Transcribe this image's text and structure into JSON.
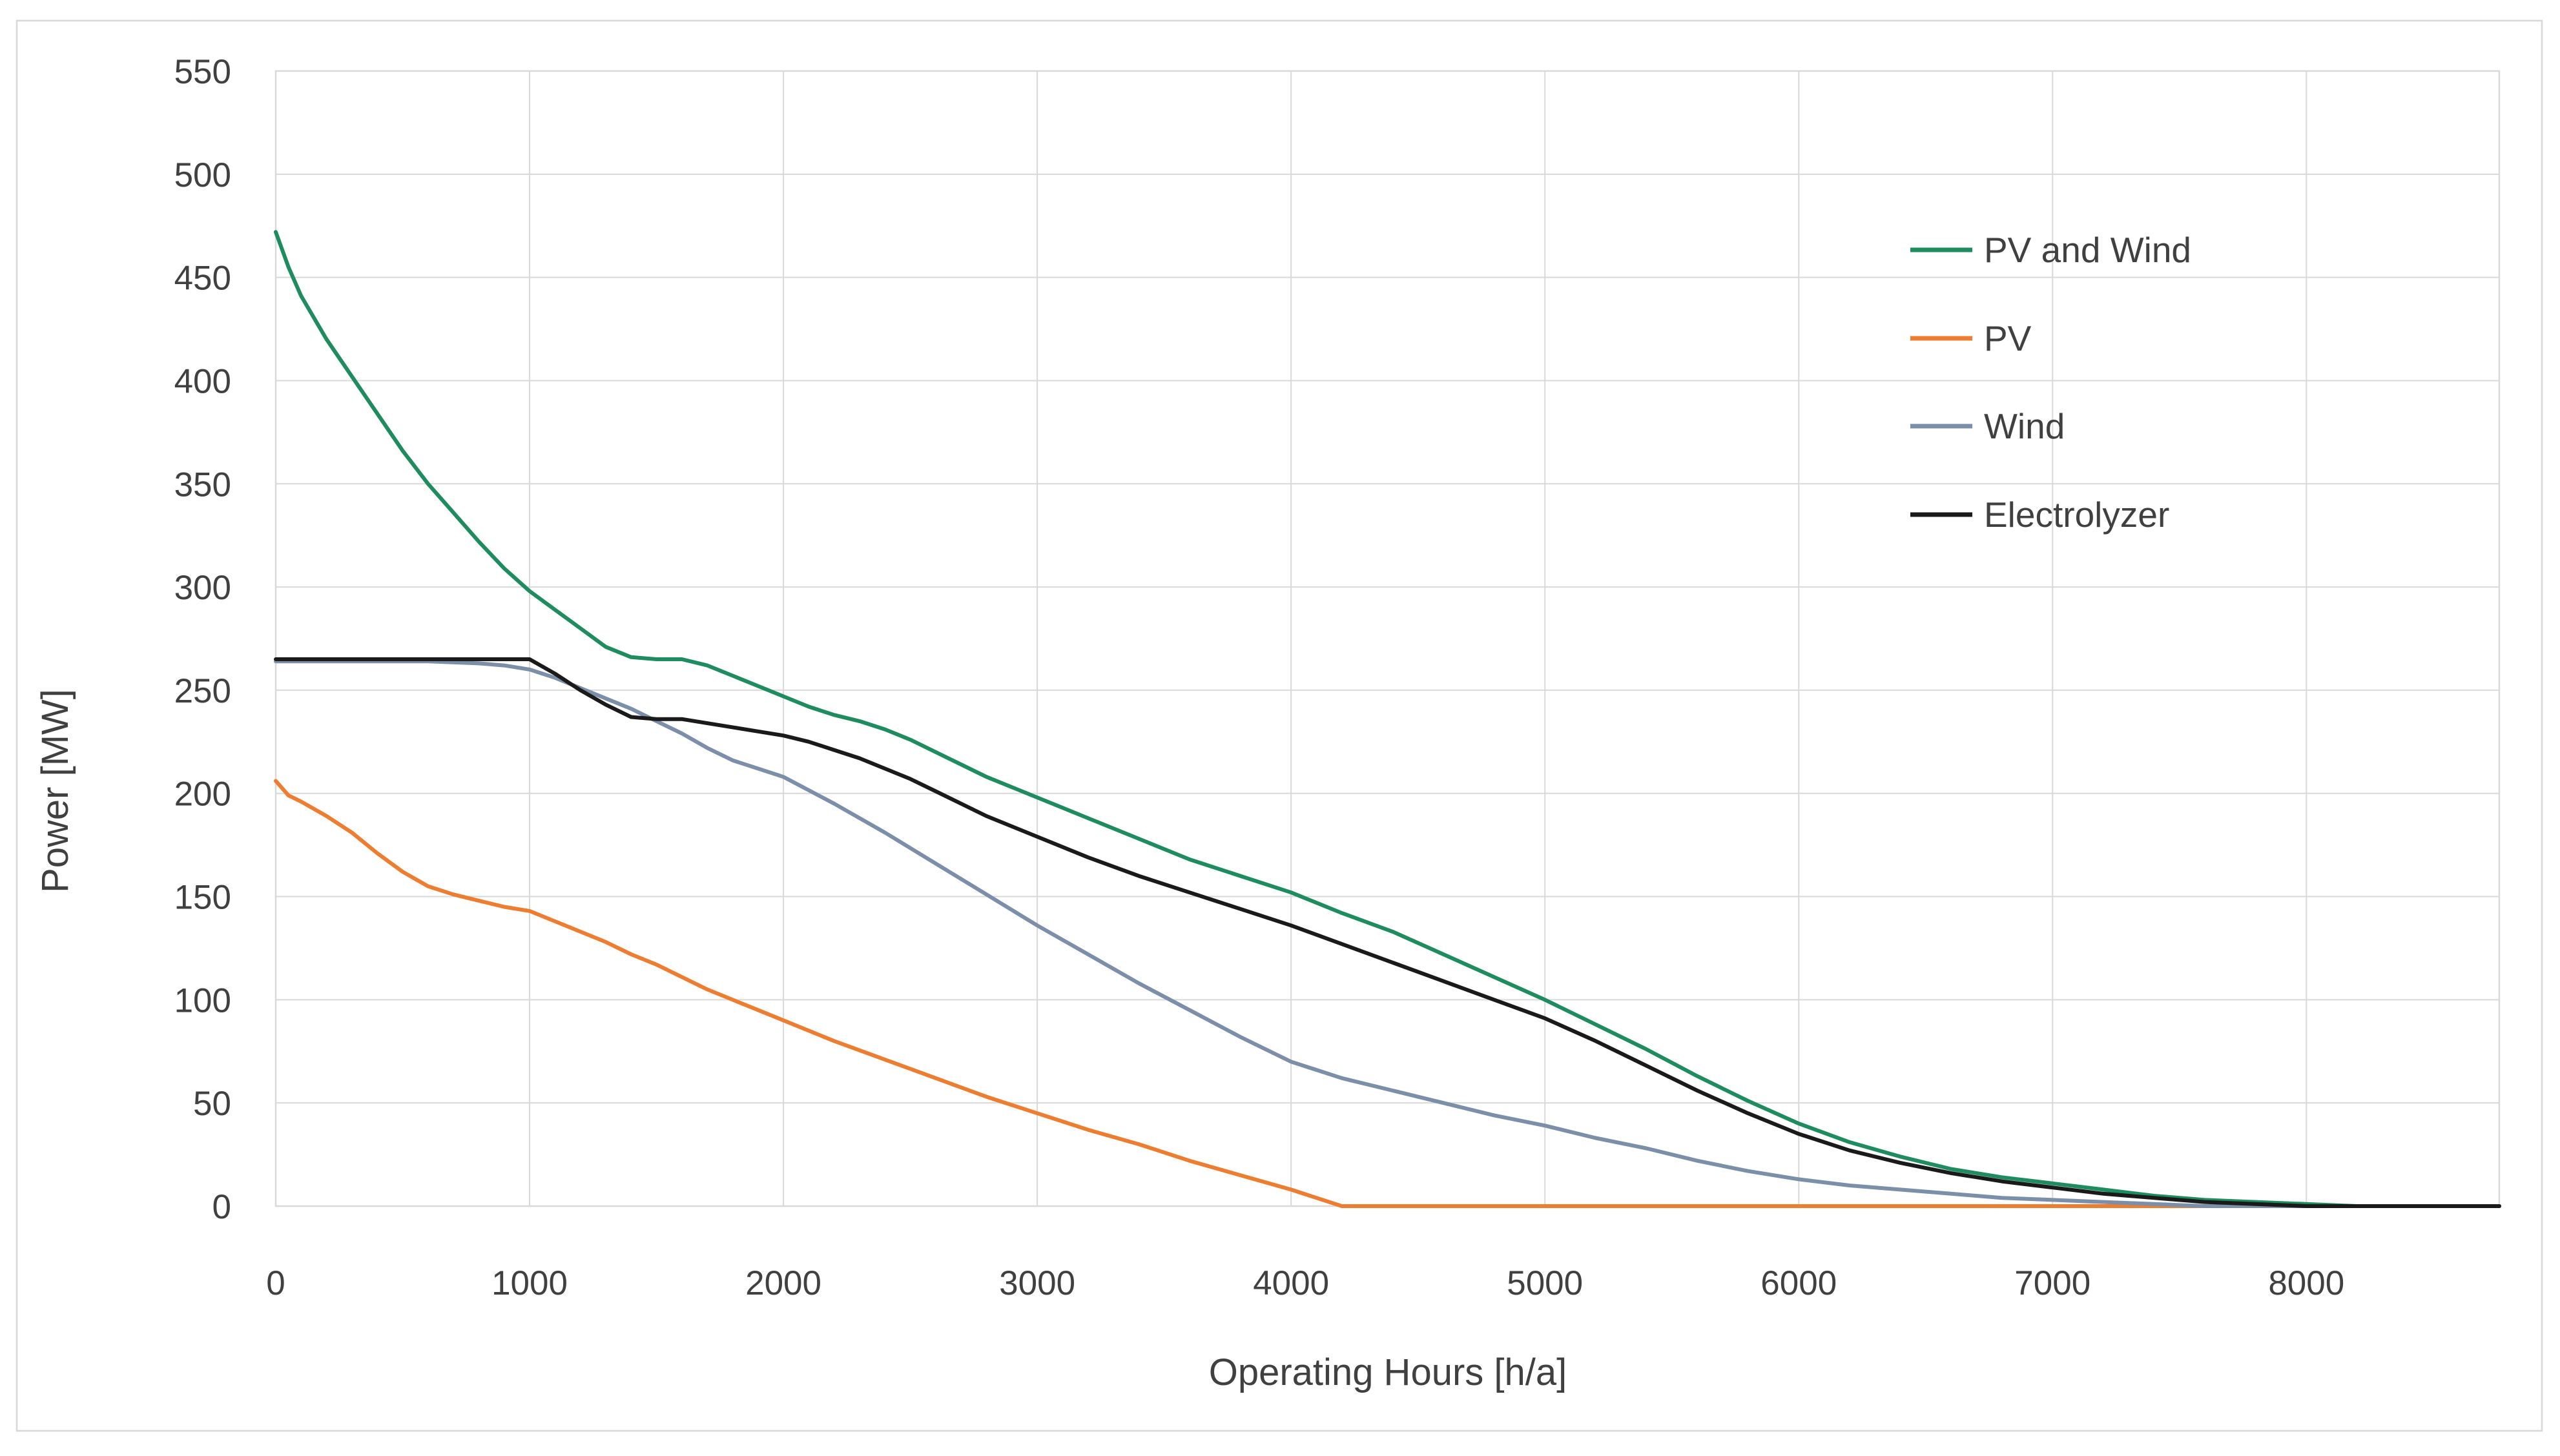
{
  "chart_data": {
    "type": "line",
    "title": "",
    "xlabel": "Operating Hours [h/a]",
    "ylabel": "Power [MW]",
    "xlim": [
      0,
      8760
    ],
    "ylim": [
      0,
      550
    ],
    "x_ticks": [
      0,
      1000,
      2000,
      3000,
      4000,
      5000,
      6000,
      7000,
      8000
    ],
    "y_ticks": [
      0,
      50,
      100,
      150,
      200,
      250,
      300,
      350,
      400,
      450,
      500,
      550
    ],
    "grid": true,
    "legend_position": "upper right",
    "series": [
      {
        "name": "PV and Wind",
        "color": "#1f8c5f",
        "points": [
          [
            0,
            472
          ],
          [
            50,
            455
          ],
          [
            100,
            441
          ],
          [
            200,
            420
          ],
          [
            300,
            402
          ],
          [
            400,
            384
          ],
          [
            500,
            366
          ],
          [
            600,
            350
          ],
          [
            700,
            336
          ],
          [
            800,
            322
          ],
          [
            900,
            309
          ],
          [
            1000,
            298
          ],
          [
            1100,
            289
          ],
          [
            1200,
            280
          ],
          [
            1300,
            271
          ],
          [
            1400,
            266
          ],
          [
            1500,
            265
          ],
          [
            1600,
            265
          ],
          [
            1700,
            262
          ],
          [
            1800,
            257
          ],
          [
            1900,
            252
          ],
          [
            2000,
            247
          ],
          [
            2100,
            242
          ],
          [
            2200,
            238
          ],
          [
            2300,
            235
          ],
          [
            2400,
            231
          ],
          [
            2500,
            226
          ],
          [
            2600,
            220
          ],
          [
            2700,
            214
          ],
          [
            2800,
            208
          ],
          [
            2900,
            203
          ],
          [
            3000,
            198
          ],
          [
            3200,
            188
          ],
          [
            3400,
            178
          ],
          [
            3600,
            168
          ],
          [
            3800,
            160
          ],
          [
            4000,
            152
          ],
          [
            4200,
            142
          ],
          [
            4400,
            133
          ],
          [
            4600,
            122
          ],
          [
            4800,
            111
          ],
          [
            5000,
            100
          ],
          [
            5200,
            88
          ],
          [
            5400,
            76
          ],
          [
            5600,
            63
          ],
          [
            5800,
            51
          ],
          [
            6000,
            40
          ],
          [
            6200,
            31
          ],
          [
            6400,
            24
          ],
          [
            6600,
            18
          ],
          [
            6800,
            14
          ],
          [
            7000,
            11
          ],
          [
            7200,
            8
          ],
          [
            7400,
            5
          ],
          [
            7600,
            3
          ],
          [
            7800,
            2
          ],
          [
            8000,
            1
          ],
          [
            8200,
            0
          ],
          [
            8760,
            0
          ]
        ]
      },
      {
        "name": "PV",
        "color": "#ed7d31",
        "points": [
          [
            0,
            206
          ],
          [
            50,
            199
          ],
          [
            100,
            196
          ],
          [
            200,
            189
          ],
          [
            300,
            181
          ],
          [
            400,
            171
          ],
          [
            500,
            162
          ],
          [
            600,
            155
          ],
          [
            700,
            151
          ],
          [
            800,
            148
          ],
          [
            900,
            145
          ],
          [
            1000,
            143
          ],
          [
            1100,
            138
          ],
          [
            1200,
            133
          ],
          [
            1300,
            128
          ],
          [
            1400,
            122
          ],
          [
            1500,
            117
          ],
          [
            1600,
            111
          ],
          [
            1700,
            105
          ],
          [
            1800,
            100
          ],
          [
            1900,
            95
          ],
          [
            2000,
            90
          ],
          [
            2200,
            80
          ],
          [
            2400,
            71
          ],
          [
            2600,
            62
          ],
          [
            2800,
            53
          ],
          [
            3000,
            45
          ],
          [
            3200,
            37
          ],
          [
            3400,
            30
          ],
          [
            3600,
            22
          ],
          [
            3800,
            15
          ],
          [
            4000,
            8
          ],
          [
            4100,
            4
          ],
          [
            4200,
            0
          ],
          [
            8760,
            0
          ]
        ]
      },
      {
        "name": "Wind",
        "color": "#7c8fa9",
        "points": [
          [
            0,
            264
          ],
          [
            200,
            264
          ],
          [
            400,
            264
          ],
          [
            600,
            264
          ],
          [
            800,
            263
          ],
          [
            900,
            262
          ],
          [
            1000,
            260
          ],
          [
            1100,
            256
          ],
          [
            1200,
            251
          ],
          [
            1300,
            246
          ],
          [
            1400,
            241
          ],
          [
            1500,
            235
          ],
          [
            1600,
            229
          ],
          [
            1700,
            222
          ],
          [
            1800,
            216
          ],
          [
            1900,
            212
          ],
          [
            2000,
            208
          ],
          [
            2200,
            195
          ],
          [
            2400,
            181
          ],
          [
            2600,
            166
          ],
          [
            2800,
            151
          ],
          [
            3000,
            136
          ],
          [
            3200,
            122
          ],
          [
            3400,
            108
          ],
          [
            3600,
            95
          ],
          [
            3800,
            82
          ],
          [
            4000,
            70
          ],
          [
            4200,
            62
          ],
          [
            4400,
            56
          ],
          [
            4600,
            50
          ],
          [
            4800,
            44
          ],
          [
            5000,
            39
          ],
          [
            5200,
            33
          ],
          [
            5400,
            28
          ],
          [
            5600,
            22
          ],
          [
            5800,
            17
          ],
          [
            6000,
            13
          ],
          [
            6200,
            10
          ],
          [
            6400,
            8
          ],
          [
            6600,
            6
          ],
          [
            6800,
            4
          ],
          [
            7000,
            3
          ],
          [
            7200,
            2
          ],
          [
            7400,
            1
          ],
          [
            7600,
            0
          ],
          [
            8760,
            0
          ]
        ]
      },
      {
        "name": "Electrolyzer",
        "color": "#1a1a1a",
        "points": [
          [
            0,
            265
          ],
          [
            500,
            265
          ],
          [
            1000,
            265
          ],
          [
            1100,
            258
          ],
          [
            1200,
            250
          ],
          [
            1300,
            243
          ],
          [
            1400,
            237
          ],
          [
            1500,
            236
          ],
          [
            1600,
            236
          ],
          [
            1700,
            234
          ],
          [
            1800,
            232
          ],
          [
            1900,
            230
          ],
          [
            2000,
            228
          ],
          [
            2100,
            225
          ],
          [
            2200,
            221
          ],
          [
            2300,
            217
          ],
          [
            2400,
            212
          ],
          [
            2500,
            207
          ],
          [
            2600,
            201
          ],
          [
            2700,
            195
          ],
          [
            2800,
            189
          ],
          [
            2900,
            184
          ],
          [
            3000,
            179
          ],
          [
            3200,
            169
          ],
          [
            3400,
            160
          ],
          [
            3600,
            152
          ],
          [
            3800,
            144
          ],
          [
            4000,
            136
          ],
          [
            4200,
            127
          ],
          [
            4400,
            118
          ],
          [
            4600,
            109
          ],
          [
            4800,
            100
          ],
          [
            5000,
            91
          ],
          [
            5200,
            80
          ],
          [
            5400,
            68
          ],
          [
            5600,
            56
          ],
          [
            5800,
            45
          ],
          [
            6000,
            35
          ],
          [
            6200,
            27
          ],
          [
            6400,
            21
          ],
          [
            6600,
            16
          ],
          [
            6800,
            12
          ],
          [
            7000,
            9
          ],
          [
            7200,
            6
          ],
          [
            7400,
            4
          ],
          [
            7600,
            2
          ],
          [
            7800,
            1
          ],
          [
            8000,
            0
          ],
          [
            8760,
            0
          ]
        ]
      }
    ]
  },
  "colors": {
    "grid": "#d9d9d9",
    "plot_border": "#d9d9d9",
    "figure_frame": "#d8d8d8",
    "axis_text": "#404040",
    "background": "#ffffff"
  }
}
